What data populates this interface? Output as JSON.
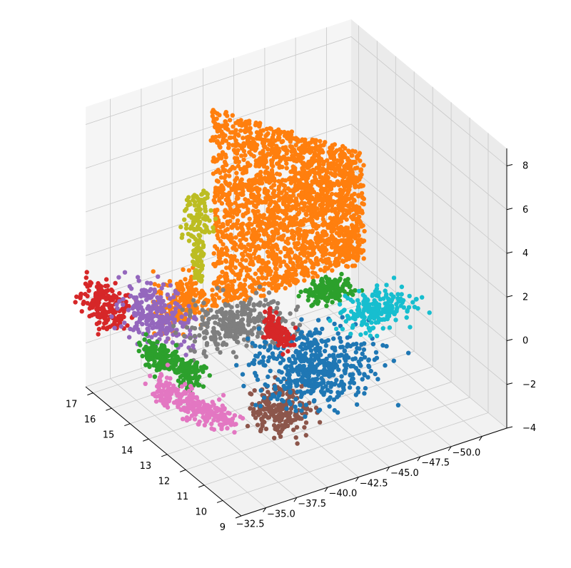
{
  "chart_data": {
    "type": "scatter",
    "projection": "3d",
    "title": "",
    "xlabel": "",
    "ylabel": "",
    "zlabel": "",
    "grid": true,
    "legend": "none",
    "xlim": [
      -30.5,
      -52
    ],
    "ylim": [
      9,
      17.4
    ],
    "zlim": [
      -4,
      8.8
    ],
    "x_ticks": [
      -32.5,
      -35.0,
      -37.5,
      -40.0,
      -42.5,
      -45.0,
      -47.5,
      -50.0
    ],
    "x_tick_labels": [
      "−32.5",
      "−35.0",
      "−37.5",
      "−40.0",
      "−42.5",
      "−45.0",
      "−47.5",
      "−50.0"
    ],
    "y_ticks": [
      9,
      10,
      11,
      12,
      13,
      14,
      15,
      16,
      17
    ],
    "y_tick_labels": [
      "9",
      "10",
      "11",
      "12",
      "13",
      "14",
      "15",
      "16",
      "17"
    ],
    "z_ticks": [
      -4,
      -2,
      0,
      2,
      4,
      6,
      8
    ],
    "z_tick_labels": [
      "−4",
      "−2",
      "0",
      "2",
      "4",
      "6",
      "8"
    ],
    "series": [
      {
        "color": "#ff7f0e",
        "shape": "wall",
        "x": [
          -38,
          -50
        ],
        "y": 15.5,
        "z": [
          -0.5,
          8.6
        ]
      },
      {
        "color": "#ff7f0e",
        "shape": "blob",
        "x": -35.5,
        "y": 15.6,
        "z": 0.2,
        "dx": 1.0,
        "dy": 0.45,
        "dz": 0.45
      },
      {
        "color": "#d62728",
        "shape": "blob",
        "x": -31.0,
        "y": 16.6,
        "z": 0.2,
        "dx": 0.6,
        "dy": 0.55,
        "dz": 0.45
      },
      {
        "color": "#9467bd",
        "shape": "blob",
        "x": -33.0,
        "y": 15.4,
        "z": 0.2,
        "dx": 1.0,
        "dy": 0.7,
        "dz": 0.5
      },
      {
        "color": "#bcbd22",
        "shape": "column",
        "x": -37.5,
        "y": 16.0,
        "z": [
          0.5,
          4.5
        ]
      },
      {
        "color": "#7f7f7f",
        "shape": "blob",
        "x": -38.8,
        "y": 14.6,
        "z": -0.7,
        "dx": 1.8,
        "dy": 0.6,
        "dz": 0.3
      },
      {
        "color": "#2ca02c",
        "shape": "strip",
        "x": [
          -32.0,
          -33.2
        ],
        "y": [
          15.2,
          13.0
        ],
        "z": -1.0
      },
      {
        "color": "#e377c2",
        "shape": "strip",
        "x": [
          -31.5,
          -33.6
        ],
        "y": [
          14.3,
          11.4
        ],
        "z": -2.0
      },
      {
        "color": "#8c564b",
        "shape": "blob",
        "x": -37.9,
        "y": 11.9,
        "z": -2.6,
        "dx": 1.0,
        "dy": 0.5,
        "dz": 0.4
      },
      {
        "color": "#1f77b4",
        "shape": "blob",
        "x": -42.0,
        "y": 12.8,
        "z": -2.0,
        "dx": 2.2,
        "dy": 0.9,
        "dz": 0.4
      },
      {
        "color": "#d62728",
        "shape": "blob",
        "x": -41.4,
        "y": 14.3,
        "z": -1.3,
        "dx": 0.35,
        "dy": 0.3,
        "dz": 0.25
      },
      {
        "color": "#2ca02c",
        "shape": "blob",
        "x": -46.0,
        "y": 14.6,
        "z": -0.5,
        "dx": 0.8,
        "dy": 0.3,
        "dz": 0.15
      },
      {
        "color": "#17becf",
        "shape": "blob",
        "x": -48.5,
        "y": 13.8,
        "z": -1.3,
        "dx": 1.3,
        "dy": 0.35,
        "dz": 0.25
      }
    ]
  }
}
